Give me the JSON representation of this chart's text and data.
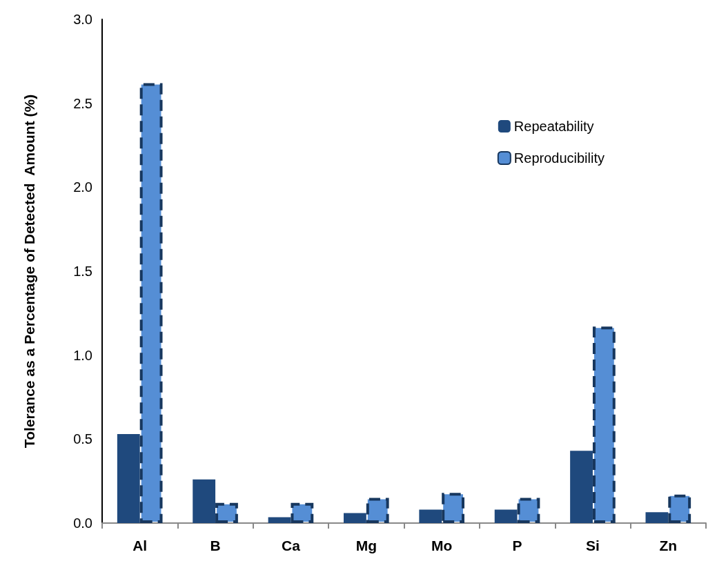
{
  "chart_data": {
    "type": "bar",
    "ylabel": "Tolerance as a Percentage of Detected  Amount (%)",
    "categories": [
      "Al",
      "B",
      "Ca",
      "Mg",
      "Mo",
      "P",
      "Si",
      "Zn"
    ],
    "series": [
      {
        "name": "Repeatability",
        "color": "#1f497d",
        "values": [
          0.53,
          0.26,
          0.035,
          0.06,
          0.08,
          0.08,
          0.43,
          0.065
        ]
      },
      {
        "name": "Reproducibility",
        "color": "#558ed5",
        "line_style": "dashed",
        "values": [
          2.62,
          0.12,
          0.12,
          0.15,
          0.18,
          0.15,
          1.17,
          0.17
        ]
      }
    ],
    "ylim": [
      0,
      3
    ],
    "yticks": [
      {
        "value": 0,
        "label": "0.0"
      },
      {
        "value": 0.5,
        "label": "0.5"
      },
      {
        "value": 1,
        "label": "1.0"
      },
      {
        "value": 1.5,
        "label": "1.5"
      },
      {
        "value": 2,
        "label": "2.0"
      },
      {
        "value": 2.5,
        "label": "2.5"
      },
      {
        "value": 3,
        "label": "3.0"
      }
    ],
    "grid": false,
    "legend": "top right"
  }
}
